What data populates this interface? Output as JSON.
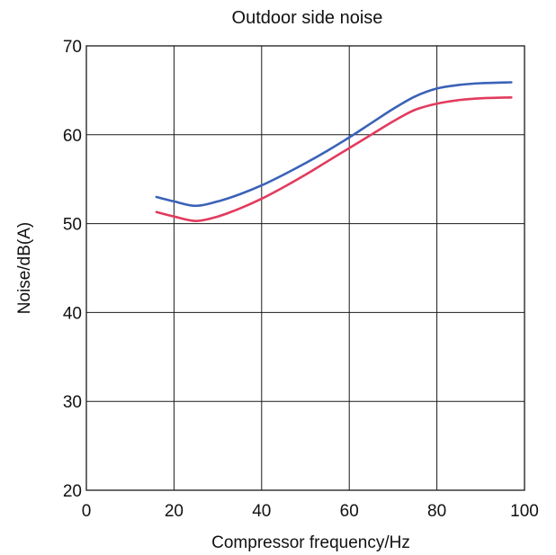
{
  "chart_data": {
    "type": "line",
    "title": "Outdoor side noise",
    "xlabel": "Compressor frequency/Hz",
    "ylabel": "Noise/dB(A)",
    "xlim": [
      0,
      100
    ],
    "ylim": [
      20,
      70
    ],
    "xticks": [
      0,
      20,
      40,
      60,
      80,
      100
    ],
    "yticks": [
      20,
      30,
      40,
      50,
      60,
      70
    ],
    "grid": true,
    "series": [
      {
        "color": "#3a62b8",
        "x": [
          16,
          20,
          25,
          30,
          35,
          40,
          45,
          50,
          55,
          60,
          65,
          70,
          75,
          80,
          85,
          90,
          97
        ],
        "y": [
          53.0,
          52.5,
          52.0,
          52.5,
          53.3,
          54.3,
          55.5,
          56.8,
          58.2,
          59.7,
          61.3,
          62.9,
          64.3,
          65.2,
          65.6,
          65.8,
          65.9
        ]
      },
      {
        "color": "#e23b5e",
        "x": [
          16,
          20,
          25,
          30,
          35,
          40,
          45,
          50,
          55,
          60,
          65,
          70,
          75,
          80,
          85,
          90,
          97
        ],
        "y": [
          51.3,
          50.8,
          50.3,
          50.8,
          51.7,
          52.8,
          54.1,
          55.5,
          57.0,
          58.5,
          60.0,
          61.5,
          62.8,
          63.5,
          63.9,
          64.1,
          64.2
        ]
      }
    ]
  }
}
